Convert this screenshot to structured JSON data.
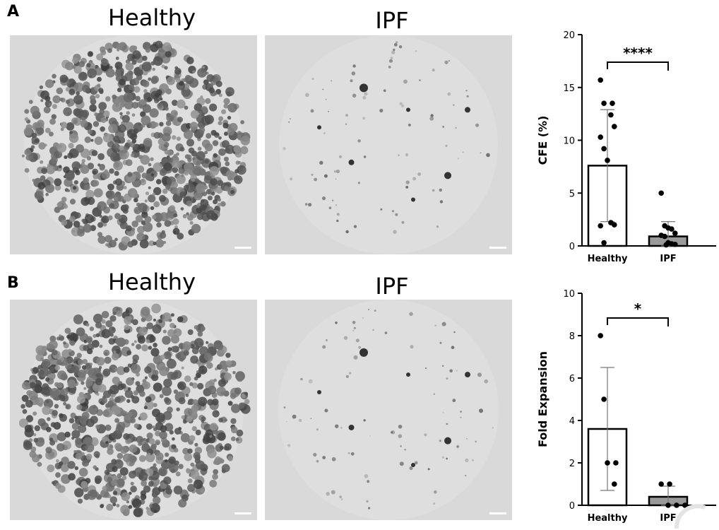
{
  "panels": [
    {
      "letter": "A",
      "left_title": "Healthy",
      "right_title": "IPF"
    },
    {
      "letter": "B",
      "left_title": "Healthy",
      "right_title": "IPF"
    }
  ],
  "chart_data": [
    {
      "type": "bar",
      "categories": [
        "Healthy",
        "IPF"
      ],
      "values": [
        7.6,
        0.9
      ],
      "error": [
        5.3,
        1.4
      ],
      "points": [
        [
          15.7,
          13.5,
          13.5,
          12.4,
          11.3,
          10.3,
          9.2,
          8.1,
          2.2,
          2.0,
          1.9,
          0.3
        ],
        [
          5.0,
          1.9,
          1.7,
          1.6,
          1.2,
          1.0,
          0.9,
          0.3,
          0.2,
          0.15,
          0.1
        ]
      ],
      "bar_colors": [
        "#ffffff",
        "#9a9a9a"
      ],
      "ylabel": "CFE (%)",
      "ylim": [
        0,
        20
      ],
      "yticks": [
        "0",
        "5",
        "10",
        "15",
        "20"
      ],
      "significance": "****"
    },
    {
      "type": "bar",
      "categories": [
        "Healthy",
        "IPF"
      ],
      "values": [
        3.6,
        0.4
      ],
      "error": [
        2.9,
        0.5
      ],
      "points": [
        [
          8,
          5,
          2,
          2,
          1
        ],
        [
          1,
          1,
          0,
          0,
          0
        ]
      ],
      "bar_colors": [
        "#ffffff",
        "#9a9a9a"
      ],
      "ylabel": "Fold Expansion",
      "ylim": [
        0,
        10
      ],
      "yticks": [
        "0",
        "2",
        "4",
        "6",
        "8",
        "10"
      ],
      "significance": "*"
    }
  ]
}
